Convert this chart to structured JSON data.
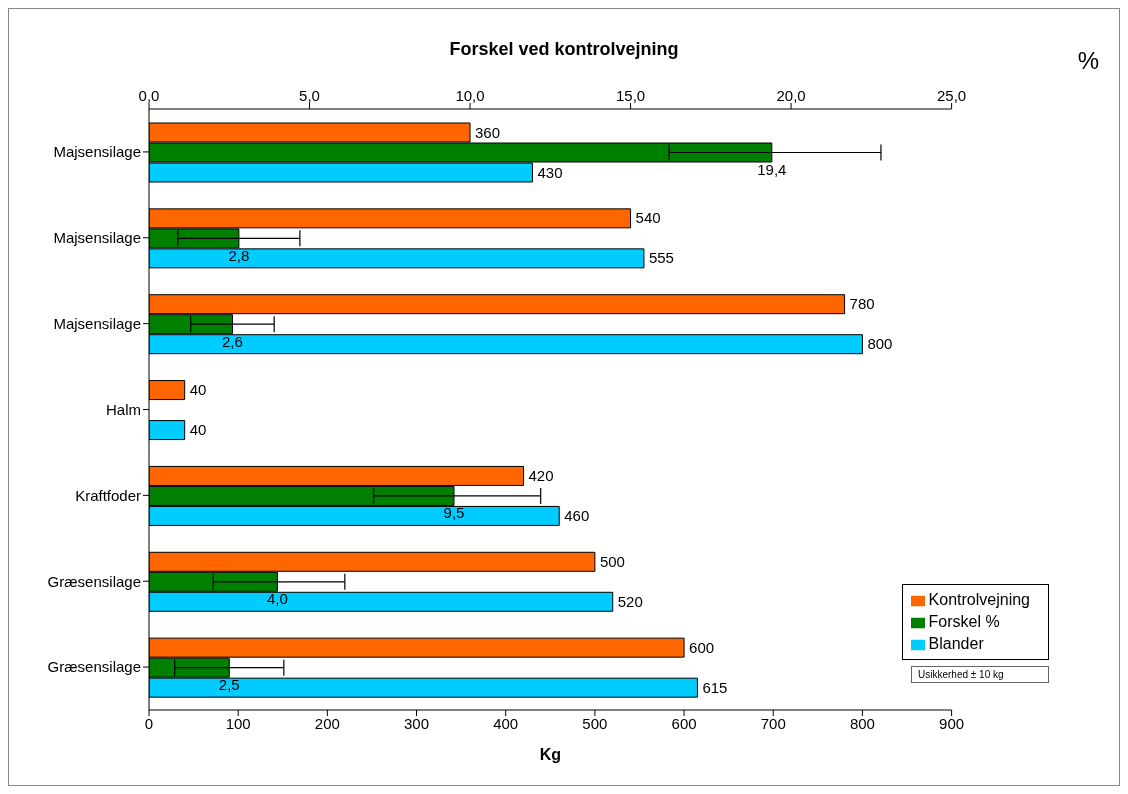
{
  "chart_data": {
    "type": "bar",
    "orientation": "horizontal",
    "title": "Forskel ved kontrolvejning",
    "xlabel": "Kg",
    "x2label": "%",
    "categories": [
      "Majsensilage",
      "Majsensilage",
      "Majsensilage",
      "Halm",
      "Kraftfoder",
      "Græsensilage",
      "Græsensilage"
    ],
    "series": [
      {
        "name": "Kontrolvejning",
        "color": "#ff6600",
        "values": [
          360,
          540,
          780,
          40,
          420,
          500,
          600
        ]
      },
      {
        "name": "Forskel %",
        "color": "#008000",
        "axis": "x2",
        "values": [
          19.4,
          2.8,
          2.6,
          null,
          9.5,
          4.0,
          2.5
        ],
        "value_labels": [
          "19,4",
          "2,8",
          "2,6",
          null,
          "9,5",
          "4,0",
          "2,5"
        ],
        "errors": [
          [
            16.2,
            22.8
          ],
          [
            0.9,
            4.7
          ],
          [
            1.3,
            3.9
          ],
          null,
          [
            7.0,
            12.2
          ],
          [
            2.0,
            6.1
          ],
          [
            0.8,
            4.2
          ]
        ]
      },
      {
        "name": "Blander",
        "color": "#00ccff",
        "values": [
          430,
          555,
          800,
          40,
          460,
          520,
          615
        ]
      }
    ],
    "xlim": [
      0,
      900
    ],
    "xticks": [
      0,
      100,
      200,
      300,
      400,
      500,
      600,
      700,
      800,
      900
    ],
    "x2lim": [
      0,
      25
    ],
    "x2ticks": [
      {
        "value": 0,
        "label": "0,0"
      },
      {
        "value": 5,
        "label": "5,0"
      },
      {
        "value": 10,
        "label": "10,0"
      },
      {
        "value": 15,
        "label": "15,0"
      },
      {
        "value": 20,
        "label": "20,0"
      },
      {
        "value": 25,
        "label": "25,0"
      }
    ],
    "data_labels": true,
    "legend": "bottom right",
    "grid": false,
    "annotations": [
      "Usikkerhed ± 10 kg"
    ]
  }
}
